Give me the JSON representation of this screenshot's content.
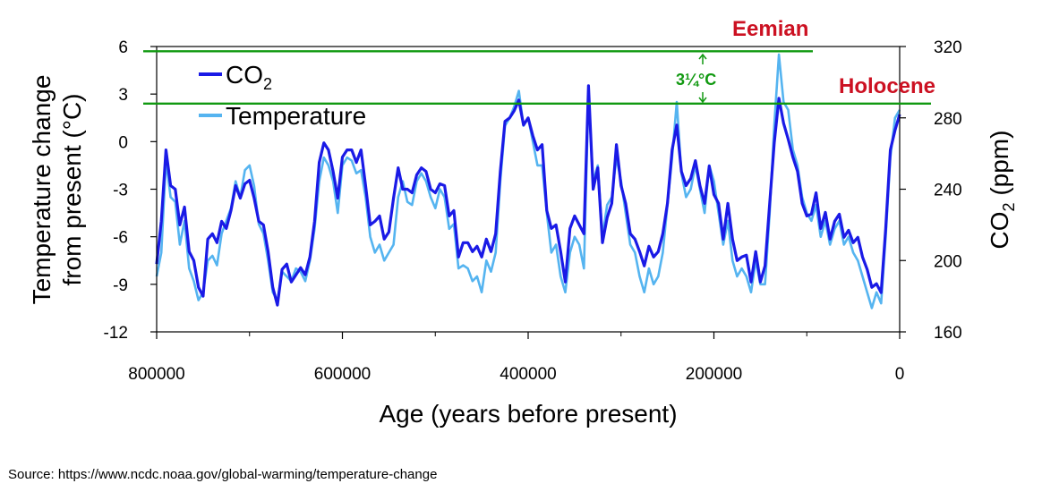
{
  "chart_data": {
    "type": "line",
    "title": "",
    "xlabel": "Age (years before present)",
    "ylabel_left": "Temperature change from present (°C)",
    "ylabel_left_lines": [
      "Temperature change",
      "from present (°C)"
    ],
    "ylabel_right": "CO2 (ppm)",
    "xlim": [
      800000,
      0
    ],
    "ylim_left": [
      -12,
      6
    ],
    "ylim_right": [
      160,
      320
    ],
    "x_ticks": [
      "800000",
      "600000",
      "400000",
      "200000",
      "0"
    ],
    "x_tick_values": [
      800000,
      600000,
      400000,
      200000,
      0
    ],
    "y_left_ticks": [
      "6",
      "3",
      "0",
      "-3",
      "-6",
      "-9",
      "-12"
    ],
    "y_left_tick_values": [
      6,
      3,
      0,
      -3,
      -6,
      -9,
      -12
    ],
    "y_right_ticks": [
      "320",
      "280",
      "240",
      "200",
      "160"
    ],
    "y_right_tick_values": [
      320,
      280,
      240,
      200,
      160
    ],
    "grid": false,
    "legend_position": "top-left",
    "series": [
      {
        "name": "CO2",
        "axis": "right",
        "color": "#1a1ae6",
        "x": [
          800000,
          795000,
          790000,
          785000,
          780000,
          775000,
          770000,
          765000,
          760000,
          755000,
          750000,
          745000,
          740000,
          735000,
          730000,
          725000,
          720000,
          715000,
          710000,
          705000,
          700000,
          695000,
          690000,
          685000,
          680000,
          675000,
          670000,
          665000,
          660000,
          655000,
          650000,
          645000,
          640000,
          635000,
          630000,
          625000,
          620000,
          615000,
          610000,
          605000,
          600000,
          595000,
          590000,
          585000,
          580000,
          575000,
          570000,
          565000,
          560000,
          555000,
          550000,
          545000,
          540000,
          535000,
          530000,
          525000,
          520000,
          515000,
          510000,
          505000,
          500000,
          495000,
          490000,
          485000,
          480000,
          475000,
          470000,
          465000,
          460000,
          455000,
          450000,
          445000,
          440000,
          435000,
          430000,
          425000,
          420000,
          415000,
          410000,
          405000,
          400000,
          395000,
          390000,
          385000,
          380000,
          375000,
          370000,
          365000,
          360000,
          355000,
          350000,
          345000,
          340000,
          335000,
          330000,
          325000,
          320000,
          315000,
          310000,
          305000,
          300000,
          295000,
          290000,
          285000,
          280000,
          275000,
          270000,
          265000,
          260000,
          255000,
          250000,
          245000,
          240000,
          235000,
          230000,
          225000,
          220000,
          215000,
          210000,
          205000,
          200000,
          195000,
          190000,
          185000,
          180000,
          175000,
          170000,
          165000,
          160000,
          155000,
          150000,
          145000,
          140000,
          135000,
          130000,
          125000,
          120000,
          115000,
          110000,
          105000,
          100000,
          95000,
          90000,
          85000,
          80000,
          75000,
          70000,
          65000,
          60000,
          55000,
          50000,
          45000,
          40000,
          35000,
          30000,
          25000,
          20000,
          15000,
          10000,
          5000,
          0
        ],
        "values": [
          198,
          222,
          262,
          242,
          240,
          220,
          230,
          205,
          200,
          185,
          180,
          212,
          215,
          210,
          222,
          218,
          228,
          242,
          235,
          243,
          245,
          235,
          222,
          220,
          205,
          185,
          175,
          195,
          198,
          188,
          192,
          196,
          192,
          202,
          222,
          255,
          266,
          262,
          250,
          235,
          258,
          262,
          262,
          255,
          262,
          242,
          220,
          222,
          225,
          212,
          216,
          235,
          252,
          240,
          240,
          238,
          248,
          252,
          250,
          240,
          238,
          243,
          242,
          225,
          228,
          202,
          210,
          210,
          205,
          208,
          202,
          212,
          205,
          215,
          250,
          278,
          280,
          284,
          290,
          276,
          280,
          270,
          262,
          265,
          228,
          218,
          220,
          205,
          188,
          218,
          225,
          220,
          215,
          298,
          240,
          252,
          210,
          224,
          232,
          265,
          242,
          232,
          215,
          212,
          205,
          197,
          208,
          202,
          205,
          215,
          232,
          262,
          276,
          250,
          242,
          246,
          256,
          242,
          232,
          253,
          237,
          232,
          212,
          232,
          212,
          200,
          202,
          203,
          188,
          205,
          188,
          197,
          232,
          266,
          291,
          277,
          268,
          258,
          250,
          232,
          225,
          226,
          238,
          218,
          227,
          212,
          222,
          226,
          213,
          217,
          210,
          213,
          202,
          195,
          185,
          187,
          182,
          218,
          262,
          273,
          282
        ]
      },
      {
        "name": "Temperature",
        "axis": "left",
        "color": "#55b4f0",
        "x": [
          800000,
          795000,
          790000,
          785000,
          780000,
          775000,
          770000,
          765000,
          760000,
          755000,
          750000,
          745000,
          740000,
          735000,
          730000,
          725000,
          720000,
          715000,
          710000,
          705000,
          700000,
          695000,
          690000,
          685000,
          680000,
          675000,
          670000,
          665000,
          660000,
          655000,
          650000,
          645000,
          640000,
          635000,
          630000,
          625000,
          620000,
          615000,
          610000,
          605000,
          600000,
          595000,
          590000,
          585000,
          580000,
          575000,
          570000,
          565000,
          560000,
          555000,
          550000,
          545000,
          540000,
          535000,
          530000,
          525000,
          520000,
          515000,
          510000,
          505000,
          500000,
          495000,
          490000,
          485000,
          480000,
          475000,
          470000,
          465000,
          460000,
          455000,
          450000,
          445000,
          440000,
          435000,
          430000,
          425000,
          420000,
          415000,
          410000,
          405000,
          400000,
          395000,
          390000,
          385000,
          380000,
          375000,
          370000,
          365000,
          360000,
          355000,
          350000,
          345000,
          340000,
          335000,
          330000,
          325000,
          320000,
          315000,
          310000,
          305000,
          300000,
          295000,
          290000,
          285000,
          280000,
          275000,
          270000,
          265000,
          260000,
          255000,
          250000,
          245000,
          240000,
          235000,
          230000,
          225000,
          220000,
          215000,
          210000,
          205000,
          200000,
          195000,
          190000,
          185000,
          180000,
          175000,
          170000,
          165000,
          160000,
          155000,
          150000,
          145000,
          140000,
          135000,
          130000,
          125000,
          120000,
          115000,
          110000,
          105000,
          100000,
          95000,
          90000,
          85000,
          80000,
          75000,
          70000,
          65000,
          60000,
          55000,
          50000,
          45000,
          40000,
          35000,
          30000,
          25000,
          20000,
          15000,
          10000,
          5000,
          0
        ],
        "values": [
          -8.5,
          -7.0,
          -1.2,
          -3.5,
          -3.8,
          -6.5,
          -5.0,
          -8.0,
          -8.8,
          -10.0,
          -9.5,
          -7.5,
          -7.2,
          -7.8,
          -5.8,
          -5.0,
          -4.2,
          -2.5,
          -3.5,
          -1.8,
          -1.5,
          -2.8,
          -5.2,
          -5.8,
          -7.5,
          -9.5,
          -10.0,
          -8.2,
          -8.5,
          -8.8,
          -8.0,
          -8.2,
          -8.8,
          -7.5,
          -5.5,
          -2.5,
          -1.0,
          -1.5,
          -2.5,
          -4.5,
          -1.5,
          -1.0,
          -1.2,
          -2.0,
          -1.8,
          -3.5,
          -6.0,
          -7.0,
          -6.5,
          -7.5,
          -7.0,
          -6.5,
          -3.5,
          -2.5,
          -3.8,
          -4.0,
          -2.5,
          -2.0,
          -2.5,
          -3.5,
          -4.2,
          -3.0,
          -3.5,
          -5.5,
          -5.2,
          -8.0,
          -7.8,
          -8.0,
          -8.8,
          -8.5,
          -9.5,
          -7.5,
          -8.2,
          -7.0,
          -2.5,
          1.0,
          1.5,
          2.2,
          3.2,
          1.0,
          1.5,
          0.0,
          -1.5,
          -1.5,
          -4.5,
          -7.0,
          -6.5,
          -8.5,
          -9.5,
          -7.0,
          -6.0,
          -6.5,
          -8.0,
          3.0,
          -2.5,
          -1.5,
          -6.0,
          -4.0,
          -3.5,
          -1.0,
          -2.5,
          -4.5,
          -6.5,
          -7.0,
          -8.5,
          -9.5,
          -8.0,
          -9.0,
          -8.5,
          -7.0,
          -4.0,
          -1.0,
          2.5,
          -2.0,
          -3.5,
          -3.0,
          -1.5,
          -3.0,
          -4.5,
          -1.5,
          -2.5,
          -4.5,
          -6.5,
          -5.0,
          -7.5,
          -8.5,
          -8.0,
          -8.5,
          -9.5,
          -7.5,
          -9.0,
          -9.0,
          -4.5,
          1.0,
          5.5,
          2.5,
          2.0,
          -0.5,
          -1.5,
          -3.5,
          -4.5,
          -5.0,
          -4.0,
          -6.0,
          -5.0,
          -6.5,
          -5.5,
          -5.0,
          -6.5,
          -6.0,
          -7.0,
          -7.5,
          -8.5,
          -9.5,
          -10.5,
          -9.5,
          -10.2,
          -6.0,
          -1.0,
          1.5,
          2.0
        ]
      }
    ],
    "legend": [
      "CO2",
      "Temperature"
    ],
    "annotations": {
      "eemian": "Eemian",
      "holocene": "Holocene",
      "difference": "3¼°C",
      "eemian_level_temp": 5.7,
      "holocene_level_temp": 2.4,
      "reference_line_color": "#119911",
      "annotation_label_color": "#cc1122"
    }
  },
  "source": {
    "text": "Source:  https://www.ncdc.noaa.gov/global-warming/temperature-change"
  }
}
